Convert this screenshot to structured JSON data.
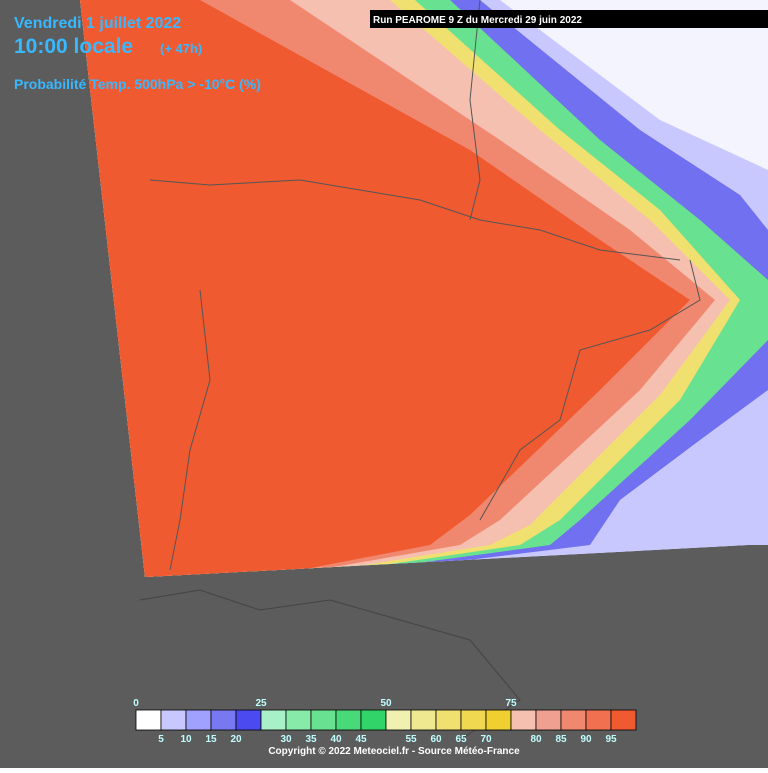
{
  "header": {
    "date": "Vendredi 1 juillet 2022",
    "time": "10:00 locale",
    "lead": "(+ 47h)",
    "parameter": "Probabilité Temp. 500hPa > -10°C (%)",
    "run": "Run PEAROME 9 Z du Mercredi 29 juin 2022"
  },
  "legend": {
    "boxes": [
      {
        "color": "#ffffff",
        "label": 0
      },
      {
        "color": "#c8c8ff",
        "label": 5
      },
      {
        "color": "#a0a0ff",
        "label": 10
      },
      {
        "color": "#7878f0",
        "label": 15
      },
      {
        "color": "#4a4af0",
        "label": 20
      },
      {
        "color": "#a8f0c8",
        "label": 25
      },
      {
        "color": "#88eaa8",
        "label": 30
      },
      {
        "color": "#68e290",
        "label": 35
      },
      {
        "color": "#48da78",
        "label": 40
      },
      {
        "color": "#30d468",
        "label": 45
      },
      {
        "color": "#f0f0b0",
        "label": 50
      },
      {
        "color": "#f0e890",
        "label": 55
      },
      {
        "color": "#f0e070",
        "label": 60
      },
      {
        "color": "#f0d850",
        "label": 65
      },
      {
        "color": "#f0d030",
        "label": 70
      },
      {
        "color": "#f5c0b0",
        "label": 75
      },
      {
        "color": "#f0a090",
        "label": 80
      },
      {
        "color": "#f08870",
        "label": 85
      },
      {
        "color": "#f07050",
        "label": 90
      },
      {
        "color": "#f05a30",
        "label": 95
      }
    ]
  },
  "footer": {
    "copyright": "Copyright © 2022 Meteociel.fr - Source Météo-France"
  }
}
